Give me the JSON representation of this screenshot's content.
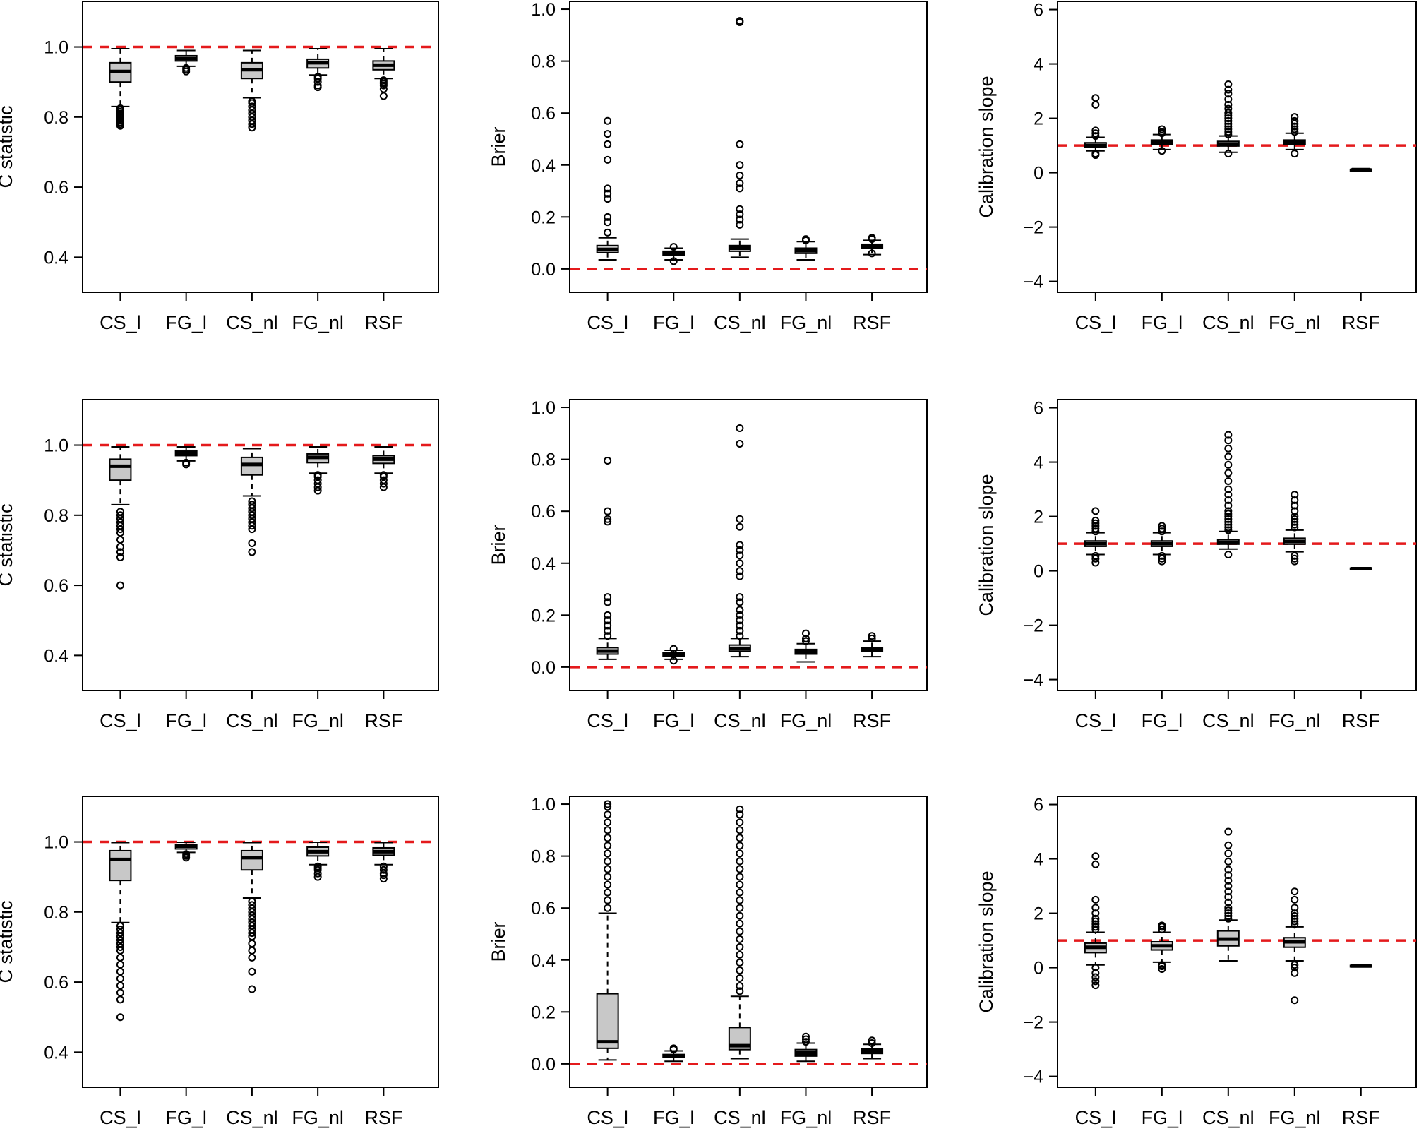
{
  "chart_data": [
    {
      "type": "boxplot",
      "row": 1,
      "ylabel": "C statistic",
      "ylim": [
        0.3,
        1.13
      ],
      "yticks": [
        0.4,
        0.6,
        0.8,
        1.0
      ],
      "ytick_labels": [
        "0.4",
        "0.6",
        "0.8",
        "1.0"
      ],
      "reference_line": 1.0,
      "categories": [
        "CS_l",
        "FG_l",
        "CS_nl",
        "FG_nl",
        "RSF"
      ],
      "boxes": [
        {
          "whislo": 0.83,
          "q1": 0.9,
          "med": 0.93,
          "q3": 0.955,
          "whishi": 0.995,
          "fliers": [
            0.775,
            0.78,
            0.785,
            0.79,
            0.795,
            0.8,
            0.805,
            0.81,
            0.815,
            0.82,
            0.825
          ]
        },
        {
          "whislo": 0.945,
          "q1": 0.96,
          "med": 0.967,
          "q3": 0.975,
          "whishi": 0.99,
          "fliers": [
            0.93,
            0.935,
            0.94
          ]
        },
        {
          "whislo": 0.855,
          "q1": 0.91,
          "med": 0.935,
          "q3": 0.955,
          "whishi": 0.99,
          "fliers": [
            0.77,
            0.78,
            0.79,
            0.8,
            0.81,
            0.82,
            0.83,
            0.84,
            0.845
          ]
        },
        {
          "whislo": 0.92,
          "q1": 0.94,
          "med": 0.955,
          "q3": 0.965,
          "whishi": 0.995,
          "fliers": [
            0.885,
            0.89,
            0.9,
            0.91,
            0.915
          ]
        },
        {
          "whislo": 0.91,
          "q1": 0.935,
          "med": 0.948,
          "q3": 0.96,
          "whishi": 0.995,
          "fliers": [
            0.86,
            0.88,
            0.89,
            0.895,
            0.9,
            0.905
          ]
        }
      ]
    },
    {
      "type": "boxplot",
      "row": 1,
      "ylabel": "Brier",
      "ylim": [
        -0.09,
        1.03
      ],
      "yticks": [
        0.0,
        0.2,
        0.4,
        0.6,
        0.8,
        1.0
      ],
      "ytick_labels": [
        "0.0",
        "0.2",
        "0.4",
        "0.6",
        "0.8",
        "1.0"
      ],
      "reference_line": 0.0,
      "categories": [
        "CS_l",
        "FG_l",
        "CS_nl",
        "FG_nl",
        "RSF"
      ],
      "boxes": [
        {
          "whislo": 0.035,
          "q1": 0.063,
          "med": 0.075,
          "q3": 0.09,
          "whishi": 0.12,
          "fliers": [
            0.14,
            0.18,
            0.2,
            0.27,
            0.29,
            0.31,
            0.42,
            0.48,
            0.52,
            0.57
          ]
        },
        {
          "whislo": 0.035,
          "q1": 0.052,
          "med": 0.06,
          "q3": 0.068,
          "whishi": 0.08,
          "fliers": [
            0.03,
            0.085
          ]
        },
        {
          "whislo": 0.045,
          "q1": 0.068,
          "med": 0.08,
          "q3": 0.09,
          "whishi": 0.115,
          "fliers": [
            0.17,
            0.19,
            0.21,
            0.23,
            0.31,
            0.33,
            0.36,
            0.4,
            0.48,
            0.95,
            0.955
          ]
        },
        {
          "whislo": 0.035,
          "q1": 0.06,
          "med": 0.07,
          "q3": 0.08,
          "whishi": 0.105,
          "fliers": [
            0.11,
            0.115
          ]
        },
        {
          "whislo": 0.055,
          "q1": 0.08,
          "med": 0.088,
          "q3": 0.095,
          "whishi": 0.11,
          "fliers": [
            0.06,
            0.115,
            0.12
          ]
        }
      ]
    },
    {
      "type": "boxplot",
      "row": 1,
      "ylabel": "Calibration slope",
      "ylim": [
        -4.4,
        6.3
      ],
      "yticks": [
        -4,
        -2,
        0,
        2,
        4,
        6
      ],
      "ytick_labels": [
        "−4",
        "−2",
        "0",
        "2",
        "4",
        "6"
      ],
      "reference_line": 1.0,
      "categories": [
        "CS_l",
        "FG_l",
        "CS_nl",
        "FG_nl",
        "RSF"
      ],
      "boxes": [
        {
          "whislo": 0.8,
          "q1": 0.95,
          "med": 1.0,
          "q3": 1.1,
          "whishi": 1.3,
          "fliers": [
            0.65,
            0.7,
            1.35,
            1.45,
            1.55,
            2.5,
            2.75
          ]
        },
        {
          "whislo": 0.85,
          "q1": 1.05,
          "med": 1.12,
          "q3": 1.2,
          "whishi": 1.4,
          "fliers": [
            0.8,
            1.45,
            1.5,
            1.6
          ]
        },
        {
          "whislo": 0.75,
          "q1": 0.98,
          "med": 1.05,
          "q3": 1.15,
          "whishi": 1.35,
          "fliers": [
            0.7,
            1.4,
            1.5,
            1.6,
            1.7,
            1.8,
            1.9,
            2.0,
            2.1,
            2.2,
            2.35,
            2.5,
            2.7,
            2.9,
            3.05,
            3.25
          ]
        },
        {
          "whislo": 0.85,
          "q1": 1.05,
          "med": 1.12,
          "q3": 1.2,
          "whishi": 1.45,
          "fliers": [
            0.7,
            1.5,
            1.6,
            1.7,
            1.8,
            1.9,
            2.05
          ]
        },
        {
          "whislo": 0.05,
          "q1": 0.08,
          "med": 0.1,
          "q3": 0.12,
          "whishi": 0.15,
          "fliers": []
        }
      ]
    },
    {
      "type": "boxplot",
      "row": 2,
      "ylabel": "C statistic",
      "ylim": [
        0.3,
        1.13
      ],
      "yticks": [
        0.4,
        0.6,
        0.8,
        1.0
      ],
      "ytick_labels": [
        "0.4",
        "0.6",
        "0.8",
        "1.0"
      ],
      "reference_line": 1.0,
      "categories": [
        "CS_l",
        "FG_l",
        "CS_nl",
        "FG_nl",
        "RSF"
      ],
      "boxes": [
        {
          "whislo": 0.83,
          "q1": 0.9,
          "med": 0.94,
          "q3": 0.96,
          "whishi": 0.995,
          "fliers": [
            0.6,
            0.68,
            0.695,
            0.71,
            0.73,
            0.75,
            0.76,
            0.77,
            0.78,
            0.79,
            0.8,
            0.81
          ]
        },
        {
          "whislo": 0.955,
          "q1": 0.97,
          "med": 0.978,
          "q3": 0.985,
          "whishi": 0.995,
          "fliers": [
            0.945,
            0.95
          ]
        },
        {
          "whislo": 0.855,
          "q1": 0.915,
          "med": 0.945,
          "q3": 0.965,
          "whishi": 0.99,
          "fliers": [
            0.695,
            0.72,
            0.76,
            0.77,
            0.78,
            0.79,
            0.8,
            0.81,
            0.82,
            0.83,
            0.84
          ]
        },
        {
          "whislo": 0.92,
          "q1": 0.95,
          "med": 0.965,
          "q3": 0.975,
          "whishi": 0.995,
          "fliers": [
            0.87,
            0.88,
            0.89,
            0.9,
            0.91,
            0.915
          ]
        },
        {
          "whislo": 0.92,
          "q1": 0.948,
          "med": 0.96,
          "q3": 0.97,
          "whishi": 0.995,
          "fliers": [
            0.88,
            0.89,
            0.9,
            0.91,
            0.915
          ]
        }
      ]
    },
    {
      "type": "boxplot",
      "row": 2,
      "ylabel": "Brier",
      "ylim": [
        -0.09,
        1.03
      ],
      "yticks": [
        0.0,
        0.2,
        0.4,
        0.6,
        0.8,
        1.0
      ],
      "ytick_labels": [
        "0.0",
        "0.2",
        "0.4",
        "0.6",
        "0.8",
        "1.0"
      ],
      "reference_line": 0.0,
      "categories": [
        "CS_l",
        "FG_l",
        "CS_nl",
        "FG_nl",
        "RSF"
      ],
      "boxes": [
        {
          "whislo": 0.03,
          "q1": 0.05,
          "med": 0.062,
          "q3": 0.075,
          "whishi": 0.11,
          "fliers": [
            0.12,
            0.14,
            0.16,
            0.18,
            0.2,
            0.25,
            0.27,
            0.56,
            0.57,
            0.6,
            0.795
          ]
        },
        {
          "whislo": 0.03,
          "q1": 0.042,
          "med": 0.048,
          "q3": 0.055,
          "whishi": 0.065,
          "fliers": [
            0.025,
            0.07
          ]
        },
        {
          "whislo": 0.04,
          "q1": 0.06,
          "med": 0.07,
          "q3": 0.085,
          "whishi": 0.11,
          "fliers": [
            0.12,
            0.14,
            0.16,
            0.18,
            0.2,
            0.22,
            0.25,
            0.27,
            0.35,
            0.37,
            0.4,
            0.43,
            0.45,
            0.47,
            0.54,
            0.57,
            0.86,
            0.92
          ]
        },
        {
          "whislo": 0.02,
          "q1": 0.05,
          "med": 0.058,
          "q3": 0.068,
          "whishi": 0.09,
          "fliers": [
            0.1,
            0.11,
            0.13
          ]
        },
        {
          "whislo": 0.04,
          "q1": 0.06,
          "med": 0.068,
          "q3": 0.075,
          "whishi": 0.1,
          "fliers": [
            0.11,
            0.12
          ]
        }
      ]
    },
    {
      "type": "boxplot",
      "row": 2,
      "ylabel": "Calibration slope",
      "ylim": [
        -4.4,
        6.3
      ],
      "yticks": [
        -4,
        -2,
        0,
        2,
        4,
        6
      ],
      "ytick_labels": [
        "−4",
        "−2",
        "0",
        "2",
        "4",
        "6"
      ],
      "reference_line": 1.0,
      "categories": [
        "CS_l",
        "FG_l",
        "CS_nl",
        "FG_nl",
        "RSF"
      ],
      "boxes": [
        {
          "whislo": 0.6,
          "q1": 0.9,
          "med": 1.0,
          "q3": 1.1,
          "whishi": 1.4,
          "fliers": [
            0.3,
            0.45,
            0.55,
            1.45,
            1.55,
            1.65,
            1.75,
            1.85,
            2.2
          ]
        },
        {
          "whislo": 0.6,
          "q1": 0.9,
          "med": 1.0,
          "q3": 1.1,
          "whishi": 1.4,
          "fliers": [
            0.35,
            0.45,
            0.55,
            1.45,
            1.55,
            1.65
          ]
        },
        {
          "whislo": 0.8,
          "q1": 0.98,
          "med": 1.05,
          "q3": 1.15,
          "whishi": 1.45,
          "fliers": [
            0.6,
            1.5,
            1.6,
            1.7,
            1.8,
            1.9,
            2.0,
            2.1,
            2.2,
            2.4,
            2.6,
            2.8,
            3.0,
            3.3,
            3.6,
            3.9,
            4.2,
            4.5,
            4.8,
            5.0
          ]
        },
        {
          "whislo": 0.7,
          "q1": 0.98,
          "med": 1.08,
          "q3": 1.2,
          "whishi": 1.5,
          "fliers": [
            0.35,
            0.45,
            0.55,
            1.6,
            1.7,
            1.8,
            1.9,
            2.0,
            2.2,
            2.4,
            2.6,
            2.8
          ]
        },
        {
          "whislo": 0.04,
          "q1": 0.06,
          "med": 0.08,
          "q3": 0.1,
          "whishi": 0.12,
          "fliers": []
        }
      ]
    },
    {
      "type": "boxplot",
      "row": 3,
      "ylabel": "C statistic",
      "ylim": [
        0.3,
        1.13
      ],
      "yticks": [
        0.4,
        0.6,
        0.8,
        1.0
      ],
      "ytick_labels": [
        "0.4",
        "0.6",
        "0.8",
        "1.0"
      ],
      "reference_line": 1.0,
      "categories": [
        "CS_l",
        "FG_l",
        "CS_nl",
        "FG_nl",
        "RSF"
      ],
      "boxes": [
        {
          "whislo": 0.77,
          "q1": 0.89,
          "med": 0.95,
          "q3": 0.975,
          "whishi": 0.998,
          "fliers": [
            0.5,
            0.55,
            0.57,
            0.59,
            0.61,
            0.63,
            0.65,
            0.67,
            0.69,
            0.7,
            0.71,
            0.72,
            0.73,
            0.74,
            0.75,
            0.76
          ]
        },
        {
          "whislo": 0.97,
          "q1": 0.98,
          "med": 0.988,
          "q3": 0.993,
          "whishi": 0.999,
          "fliers": [
            0.955,
            0.96,
            0.965
          ]
        },
        {
          "whislo": 0.84,
          "q1": 0.92,
          "med": 0.955,
          "q3": 0.975,
          "whishi": 0.998,
          "fliers": [
            0.58,
            0.63,
            0.67,
            0.69,
            0.71,
            0.73,
            0.74,
            0.75,
            0.76,
            0.77,
            0.78,
            0.79,
            0.8,
            0.81,
            0.82,
            0.83
          ]
        },
        {
          "whislo": 0.935,
          "q1": 0.96,
          "med": 0.972,
          "q3": 0.985,
          "whishi": 0.999,
          "fliers": [
            0.9,
            0.91,
            0.92,
            0.925,
            0.93
          ]
        },
        {
          "whislo": 0.935,
          "q1": 0.962,
          "med": 0.972,
          "q3": 0.983,
          "whishi": 0.998,
          "fliers": [
            0.895,
            0.905,
            0.91,
            0.92,
            0.93
          ]
        }
      ]
    },
    {
      "type": "boxplot",
      "row": 3,
      "ylabel": "Brier",
      "ylim": [
        -0.09,
        1.03
      ],
      "yticks": [
        0.0,
        0.2,
        0.4,
        0.6,
        0.8,
        1.0
      ],
      "ytick_labels": [
        "0.0",
        "0.2",
        "0.4",
        "0.6",
        "0.8",
        "1.0"
      ],
      "reference_line": 0.0,
      "categories": [
        "CS_l",
        "FG_l",
        "CS_nl",
        "FG_nl",
        "RSF"
      ],
      "boxes": [
        {
          "whislo": 0.015,
          "q1": 0.06,
          "med": 0.085,
          "q3": 0.27,
          "whishi": 0.58,
          "fliers": [
            0.6,
            0.63,
            0.66,
            0.69,
            0.72,
            0.75,
            0.78,
            0.81,
            0.84,
            0.87,
            0.9,
            0.93,
            0.96,
            0.99,
            1.0
          ]
        },
        {
          "whislo": 0.01,
          "q1": 0.025,
          "med": 0.03,
          "q3": 0.036,
          "whishi": 0.05,
          "fliers": [
            0.055,
            0.06
          ]
        },
        {
          "whislo": 0.02,
          "q1": 0.055,
          "med": 0.07,
          "q3": 0.14,
          "whishi": 0.26,
          "fliers": [
            0.28,
            0.3,
            0.33,
            0.36,
            0.39,
            0.42,
            0.45,
            0.48,
            0.51,
            0.54,
            0.57,
            0.6,
            0.63,
            0.66,
            0.69,
            0.72,
            0.75,
            0.78,
            0.81,
            0.84,
            0.87,
            0.9,
            0.93,
            0.96,
            0.98
          ]
        },
        {
          "whislo": 0.01,
          "q1": 0.03,
          "med": 0.042,
          "q3": 0.055,
          "whishi": 0.08,
          "fliers": [
            0.085,
            0.095,
            0.105
          ]
        },
        {
          "whislo": 0.02,
          "q1": 0.04,
          "med": 0.05,
          "q3": 0.058,
          "whishi": 0.075,
          "fliers": [
            0.08,
            0.09
          ]
        }
      ]
    },
    {
      "type": "boxplot",
      "row": 3,
      "ylabel": "Calibration slope",
      "ylim": [
        -4.4,
        6.3
      ],
      "yticks": [
        -4,
        -2,
        0,
        2,
        4,
        6
      ],
      "ytick_labels": [
        "−4",
        "−2",
        "0",
        "2",
        "4",
        "6"
      ],
      "reference_line": 1.0,
      "categories": [
        "CS_l",
        "FG_l",
        "CS_nl",
        "FG_nl",
        "RSF"
      ],
      "boxes": [
        {
          "whislo": 0.1,
          "q1": 0.55,
          "med": 0.75,
          "q3": 0.9,
          "whishi": 1.3,
          "fliers": [
            -0.65,
            -0.5,
            -0.35,
            -0.2,
            0.0,
            1.4,
            1.5,
            1.6,
            1.7,
            1.8,
            2.0,
            2.2,
            2.5,
            3.8,
            4.1
          ]
        },
        {
          "whislo": 0.2,
          "q1": 0.65,
          "med": 0.8,
          "q3": 0.95,
          "whishi": 1.3,
          "fliers": [
            -0.05,
            0.05,
            0.1,
            1.4,
            1.5,
            1.55
          ]
        },
        {
          "whislo": 0.25,
          "q1": 0.8,
          "med": 1.05,
          "q3": 1.35,
          "whishi": 1.75,
          "fliers": [
            1.8,
            1.9,
            2.0,
            2.1,
            2.2,
            2.4,
            2.6,
            2.8,
            3.0,
            3.2,
            3.4,
            3.6,
            3.9,
            4.2,
            4.5,
            5.0
          ]
        },
        {
          "whislo": 0.25,
          "q1": 0.75,
          "med": 0.95,
          "q3": 1.1,
          "whishi": 1.5,
          "fliers": [
            -1.2,
            -0.2,
            0.0,
            0.1,
            1.6,
            1.7,
            1.8,
            1.9,
            2.0,
            2.2,
            2.5,
            2.8
          ]
        },
        {
          "whislo": 0.03,
          "q1": 0.05,
          "med": 0.06,
          "q3": 0.08,
          "whishi": 0.1,
          "fliers": []
        }
      ]
    }
  ]
}
